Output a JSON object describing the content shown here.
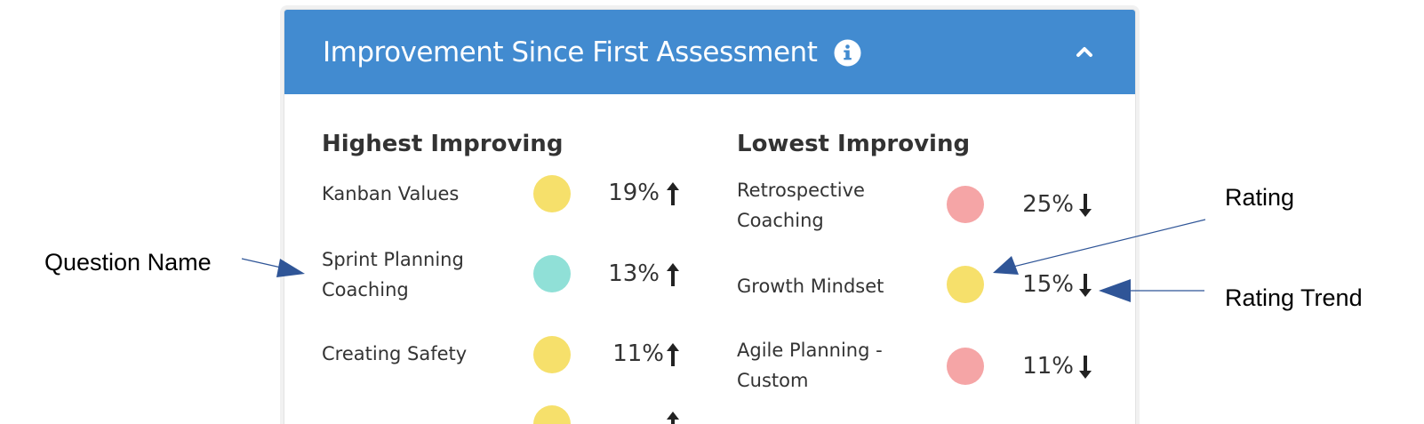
{
  "panel": {
    "title": "Improvement Since First Assessment",
    "info_icon": "info-circle-icon",
    "collapse_icon": "chevron-up-icon"
  },
  "colors": {
    "header_bg": "#428bd0",
    "yellow": "#f6e06b",
    "teal": "#90e0d7",
    "pink": "#f5a5a6",
    "callout_arrow": "#2f5597"
  },
  "highest": {
    "title": "Highest Improving",
    "items": [
      {
        "name": "Kanban Values",
        "rating_color": "yellow",
        "percent": "19%",
        "trend": "up"
      },
      {
        "name": "Sprint Planning Coaching",
        "rating_color": "teal",
        "percent": "13%",
        "trend": "up"
      },
      {
        "name": "Creating Safety",
        "rating_color": "yellow",
        "percent": "11%",
        "trend": "up"
      },
      {
        "name": "",
        "rating_color": "yellow",
        "percent": "",
        "trend": "up"
      }
    ]
  },
  "lowest": {
    "title": "Lowest Improving",
    "items": [
      {
        "name": "Retrospective Coaching",
        "rating_color": "pink",
        "percent": "25%",
        "trend": "down"
      },
      {
        "name": "Growth Mindset",
        "rating_color": "yellow",
        "percent": "15%",
        "trend": "down"
      },
      {
        "name": "Agile Planning - Custom",
        "rating_color": "pink",
        "percent": "11%",
        "trend": "down"
      }
    ]
  },
  "callouts": {
    "question_name": "Question Name",
    "rating": "Rating",
    "rating_trend": "Rating Trend"
  }
}
